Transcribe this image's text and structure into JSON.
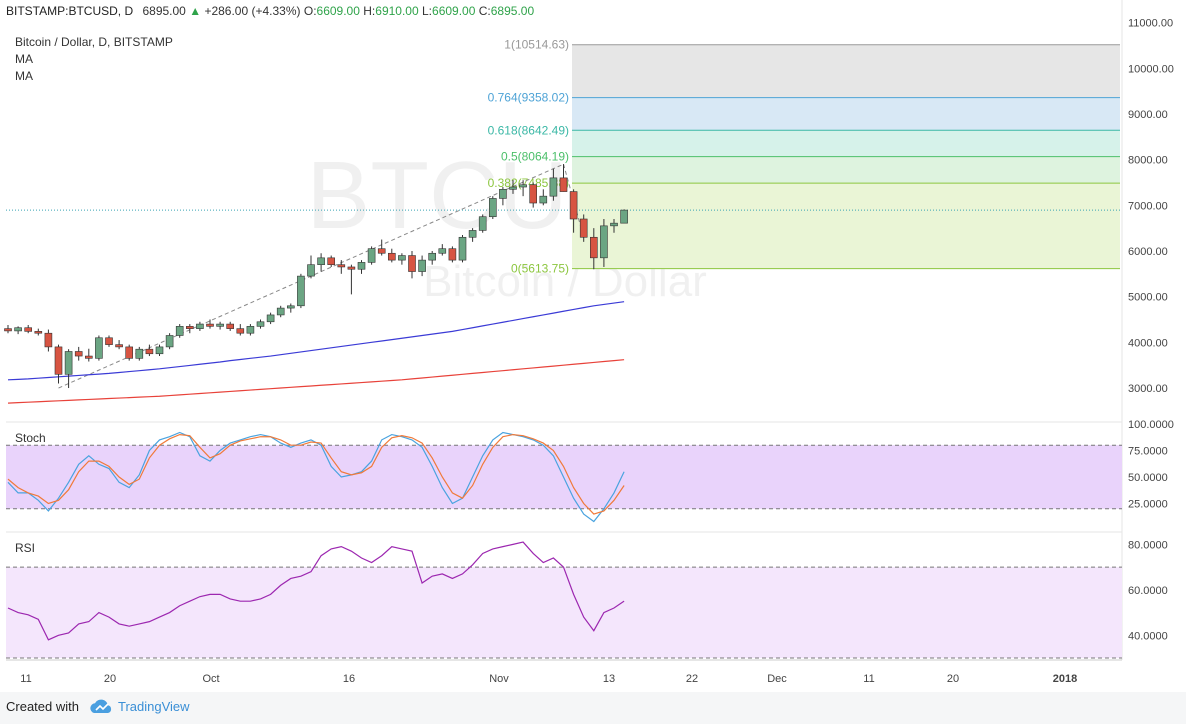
{
  "header": {
    "symbol": "BITSTAMP:BTCUSD, D",
    "last": "6895.00",
    "arrow": "▲",
    "change": "+286.00 (+4.33%)",
    "o_label": "O:",
    "o_value": "6609.00",
    "h_label": "H:",
    "h_value": "6910.00",
    "l_label": "L:",
    "l_value": "6609.00",
    "c_label": "C:",
    "c_value": "6895.00"
  },
  "legend": {
    "title": "Bitcoin / Dollar, D, BITSTAMP",
    "ma1": "MA",
    "ma2": "MA"
  },
  "watermark": {
    "line1": "BTCUSD, D",
    "line2": "Bitcoin / Dollar"
  },
  "panes": {
    "stoch": "Stoch",
    "rsi": "RSI"
  },
  "footer": {
    "created_with": "Created with",
    "brand": "TradingView"
  },
  "colors": {
    "up": "#6ba583",
    "down": "#d75442",
    "ma_fast": "#3b3bd6",
    "ma_slow": "#e8423a",
    "stoch_k": "#4aa3df",
    "stoch_d": "#f07a3a",
    "rsi": "#9c27b0",
    "stoch_band": "#e9d3fb",
    "rsi_band": "#f4e6fc"
  },
  "chart_data": [
    {
      "type": "candlestick",
      "pane": "price",
      "title": "Bitcoin / Dollar, D, BITSTAMP",
      "x_tick_labels": [
        "11",
        "20",
        "Oct",
        "16",
        "Nov",
        "13",
        "22",
        "Dec",
        "11",
        "20",
        "2018"
      ],
      "y_tick_labels": [
        "11000.00",
        "10000.00",
        "9000.00",
        "8000.00",
        "7000.00",
        "6000.00",
        "5000.00",
        "4000.00",
        "3000.00"
      ],
      "ylim": [
        2300,
        11100
      ],
      "y_ticks": [
        11000,
        10000,
        9000,
        8000,
        7000,
        6000,
        5000,
        4000,
        3000
      ],
      "last_price": 6895,
      "candles": [
        [
          4300,
          4380,
          4200,
          4250
        ],
        [
          4250,
          4350,
          4180,
          4320
        ],
        [
          4320,
          4380,
          4200,
          4240
        ],
        [
          4240,
          4300,
          4150,
          4200
        ],
        [
          4200,
          4280,
          3800,
          3900
        ],
        [
          3900,
          3950,
          3100,
          3300
        ],
        [
          3300,
          3850,
          3000,
          3800
        ],
        [
          3800,
          3900,
          3600,
          3700
        ],
        [
          3700,
          3860,
          3580,
          3650
        ],
        [
          3650,
          4150,
          3600,
          4100
        ],
        [
          4100,
          4150,
          3900,
          3950
        ],
        [
          3950,
          4050,
          3850,
          3900
        ],
        [
          3900,
          3950,
          3600,
          3650
        ],
        [
          3650,
          3900,
          3600,
          3850
        ],
        [
          3850,
          3950,
          3700,
          3750
        ],
        [
          3750,
          3950,
          3700,
          3900
        ],
        [
          3900,
          4200,
          3850,
          4150
        ],
        [
          4150,
          4400,
          4100,
          4350
        ],
        [
          4350,
          4400,
          4200,
          4300
        ],
        [
          4300,
          4450,
          4250,
          4400
        ],
        [
          4400,
          4500,
          4300,
          4350
        ],
        [
          4350,
          4450,
          4280,
          4400
        ],
        [
          4400,
          4450,
          4250,
          4300
        ],
        [
          4300,
          4400,
          4150,
          4200
        ],
        [
          4200,
          4400,
          4150,
          4350
        ],
        [
          4350,
          4500,
          4300,
          4450
        ],
        [
          4450,
          4650,
          4400,
          4600
        ],
        [
          4600,
          4800,
          4550,
          4750
        ],
        [
          4750,
          4850,
          4650,
          4800
        ],
        [
          4800,
          5500,
          4750,
          5450
        ],
        [
          5450,
          5900,
          5400,
          5700
        ],
        [
          5700,
          5950,
          5550,
          5850
        ],
        [
          5850,
          5900,
          5650,
          5700
        ],
        [
          5700,
          5800,
          5500,
          5650
        ],
        [
          5650,
          5700,
          5050,
          5600
        ],
        [
          5600,
          5800,
          5500,
          5750
        ],
        [
          5750,
          6100,
          5700,
          6050
        ],
        [
          6050,
          6250,
          5900,
          5950
        ],
        [
          5950,
          6050,
          5750,
          5800
        ],
        [
          5800,
          5950,
          5700,
          5900
        ],
        [
          5900,
          6000,
          5400,
          5550
        ],
        [
          5550,
          5900,
          5450,
          5800
        ],
        [
          5800,
          6000,
          5700,
          5950
        ],
        [
          5950,
          6150,
          5900,
          6050
        ],
        [
          6050,
          6100,
          5750,
          5800
        ],
        [
          5800,
          6350,
          5750,
          6300
        ],
        [
          6300,
          6500,
          6200,
          6450
        ],
        [
          6450,
          6800,
          6400,
          6750
        ],
        [
          6750,
          7200,
          6700,
          7150
        ],
        [
          7150,
          7400,
          7000,
          7350
        ],
        [
          7350,
          7550,
          7250,
          7400
        ],
        [
          7400,
          7550,
          7200,
          7450
        ],
        [
          7450,
          7500,
          6950,
          7050
        ],
        [
          7050,
          7350,
          7000,
          7200
        ],
        [
          7200,
          7800,
          7100,
          7600
        ],
        [
          7600,
          7900,
          7300,
          7300
        ],
        [
          7300,
          7350,
          6400,
          6700
        ],
        [
          6700,
          6800,
          6200,
          6300
        ],
        [
          6300,
          6500,
          5600,
          5850
        ],
        [
          5850,
          6700,
          5650,
          6550
        ],
        [
          6550,
          6700,
          6400,
          6609
        ],
        [
          6609,
          6910,
          6609,
          6895
        ]
      ],
      "series": [
        {
          "name": "MA",
          "values": [
            3180,
            3190,
            3200,
            3215,
            3230,
            3245,
            3260,
            3275,
            3290,
            3305,
            3320,
            3340,
            3360,
            3380,
            3400,
            3420,
            3445,
            3470,
            3495,
            3520,
            3545,
            3570,
            3600,
            3625,
            3650,
            3675,
            3700,
            3730,
            3760,
            3790,
            3820,
            3850,
            3880,
            3910,
            3940,
            3970,
            4000,
            4030,
            4060,
            4090,
            4120,
            4150,
            4180,
            4210,
            4240,
            4280,
            4320,
            4360,
            4400,
            4440,
            4480,
            4520,
            4560,
            4600,
            4640,
            4680,
            4720,
            4760,
            4800,
            4830,
            4860,
            4890
          ]
        },
        {
          "name": "MA",
          "values": [
            2670,
            2680,
            2690,
            2700,
            2710,
            2720,
            2730,
            2740,
            2750,
            2760,
            2770,
            2780,
            2790,
            2800,
            2810,
            2820,
            2835,
            2850,
            2865,
            2880,
            2895,
            2910,
            2925,
            2940,
            2955,
            2970,
            2985,
            3000,
            3015,
            3030,
            3045,
            3060,
            3075,
            3090,
            3105,
            3120,
            3135,
            3150,
            3165,
            3180,
            3200,
            3220,
            3240,
            3260,
            3280,
            3300,
            3320,
            3340,
            3360,
            3380,
            3400,
            3420,
            3440,
            3460,
            3480,
            3500,
            3520,
            3540,
            3560,
            3580,
            3600,
            3620
          ]
        }
      ],
      "fibonacci": {
        "levels": [
          {
            "label": "1(10514.63)",
            "price": 10514.63
          },
          {
            "label": "0.764(9358.02)",
            "price": 9358.02
          },
          {
            "label": "0.618(8642.49)",
            "price": 8642.49
          },
          {
            "label": "0.5(8064.19)",
            "price": 8064.19
          },
          {
            "label": "0.382(7485.88)",
            "price": 7485.88
          },
          {
            "label": "0(5613.75)",
            "price": 5613.75
          }
        ]
      }
    },
    {
      "type": "line",
      "pane": "stoch",
      "title": "Stoch",
      "y_tick_labels": [
        "100.0000",
        "75.0000",
        "50.0000",
        "25.0000"
      ],
      "ylim": [
        0,
        100
      ],
      "band": [
        20,
        80
      ],
      "series": [
        {
          "name": "%K",
          "values": [
            45,
            35,
            35,
            28,
            18,
            30,
            45,
            62,
            70,
            62,
            58,
            45,
            40,
            52,
            75,
            85,
            88,
            92,
            88,
            70,
            65,
            75,
            82,
            85,
            88,
            90,
            88,
            82,
            78,
            82,
            85,
            80,
            60,
            50,
            52,
            55,
            65,
            85,
            90,
            88,
            85,
            78,
            60,
            40,
            25,
            30,
            50,
            70,
            85,
            92,
            90,
            88,
            85,
            80,
            70,
            50,
            30,
            15,
            8,
            20,
            35,
            55
          ]
        },
        {
          "name": "%D",
          "values": [
            48,
            40,
            35,
            32,
            25,
            28,
            38,
            55,
            65,
            65,
            60,
            50,
            43,
            48,
            68,
            80,
            86,
            90,
            89,
            78,
            68,
            72,
            80,
            84,
            86,
            88,
            88,
            85,
            80,
            80,
            83,
            82,
            68,
            55,
            52,
            54,
            60,
            78,
            87,
            89,
            87,
            82,
            68,
            50,
            35,
            30,
            42,
            62,
            78,
            88,
            90,
            89,
            86,
            82,
            75,
            60,
            40,
            25,
            15,
            18,
            28,
            42
          ]
        }
      ]
    },
    {
      "type": "line",
      "pane": "rsi",
      "title": "RSI",
      "y_tick_labels": [
        "80.0000",
        "60.0000",
        "40.0000"
      ],
      "ylim": [
        30,
        85
      ],
      "band": [
        30,
        70
      ],
      "series": [
        {
          "name": "RSI",
          "values": [
            52,
            50,
            49,
            47,
            38,
            40,
            41,
            45,
            46,
            50,
            48,
            45,
            44,
            45,
            46,
            48,
            50,
            53,
            55,
            57,
            58,
            58,
            56,
            55,
            55,
            56,
            58,
            62,
            65,
            66,
            68,
            75,
            78,
            79,
            77,
            74,
            72,
            75,
            79,
            78,
            77,
            63,
            66,
            67,
            65,
            67,
            71,
            76,
            78,
            79,
            80,
            81,
            76,
            72,
            74,
            70,
            58,
            48,
            42,
            50,
            52,
            55
          ]
        }
      ]
    }
  ]
}
